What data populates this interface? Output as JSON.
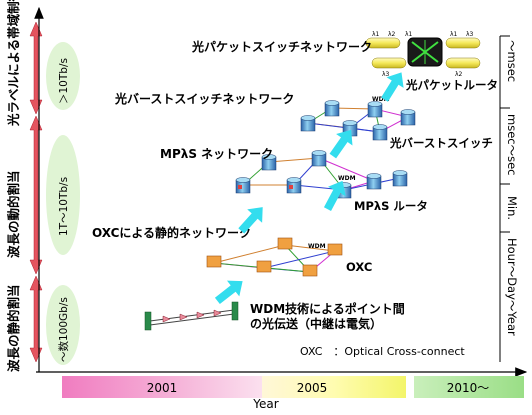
{
  "left_labels": [
    "光ラベルによる帯域制御",
    "波長の動的割当",
    "波長の静的割当"
  ],
  "bandwidth_labels": [
    "＞10Tb/s",
    "1T〜10Tb/s",
    "〜数100Gb/s"
  ],
  "right_labels": [
    "〜msec",
    "msec〜sec",
    "Min.",
    "Hour〜Day〜Year"
  ],
  "stages": {
    "packet_network": "光パケットスイッチネットワーク",
    "burst_network": "光バーストスイッチネットワーク",
    "mpls_network": "MPλS ネットワーク",
    "oxc_network": "OXCによる静的ネットワーク",
    "wdm_p2p_line1": "WDM技術によるポイント間",
    "wdm_p2p_line2": "の光伝送（中継は電気）"
  },
  "devices": {
    "packet_router": "光パケットルータ",
    "burst_switch": "光バーストスイッチ",
    "mpls_router": "MPλS ルータ",
    "oxc": "OXC"
  },
  "wdm_tag": "WDM",
  "packet_labels": [
    "λ1",
    "λ2",
    "λ1",
    "λ3",
    "λ3",
    "λ2",
    "λ1"
  ],
  "footnote": "OXC　：Optical Cross-connect",
  "timeline": {
    "years": [
      "2001",
      "2005",
      "2010〜"
    ],
    "axis_label": "Year"
  }
}
